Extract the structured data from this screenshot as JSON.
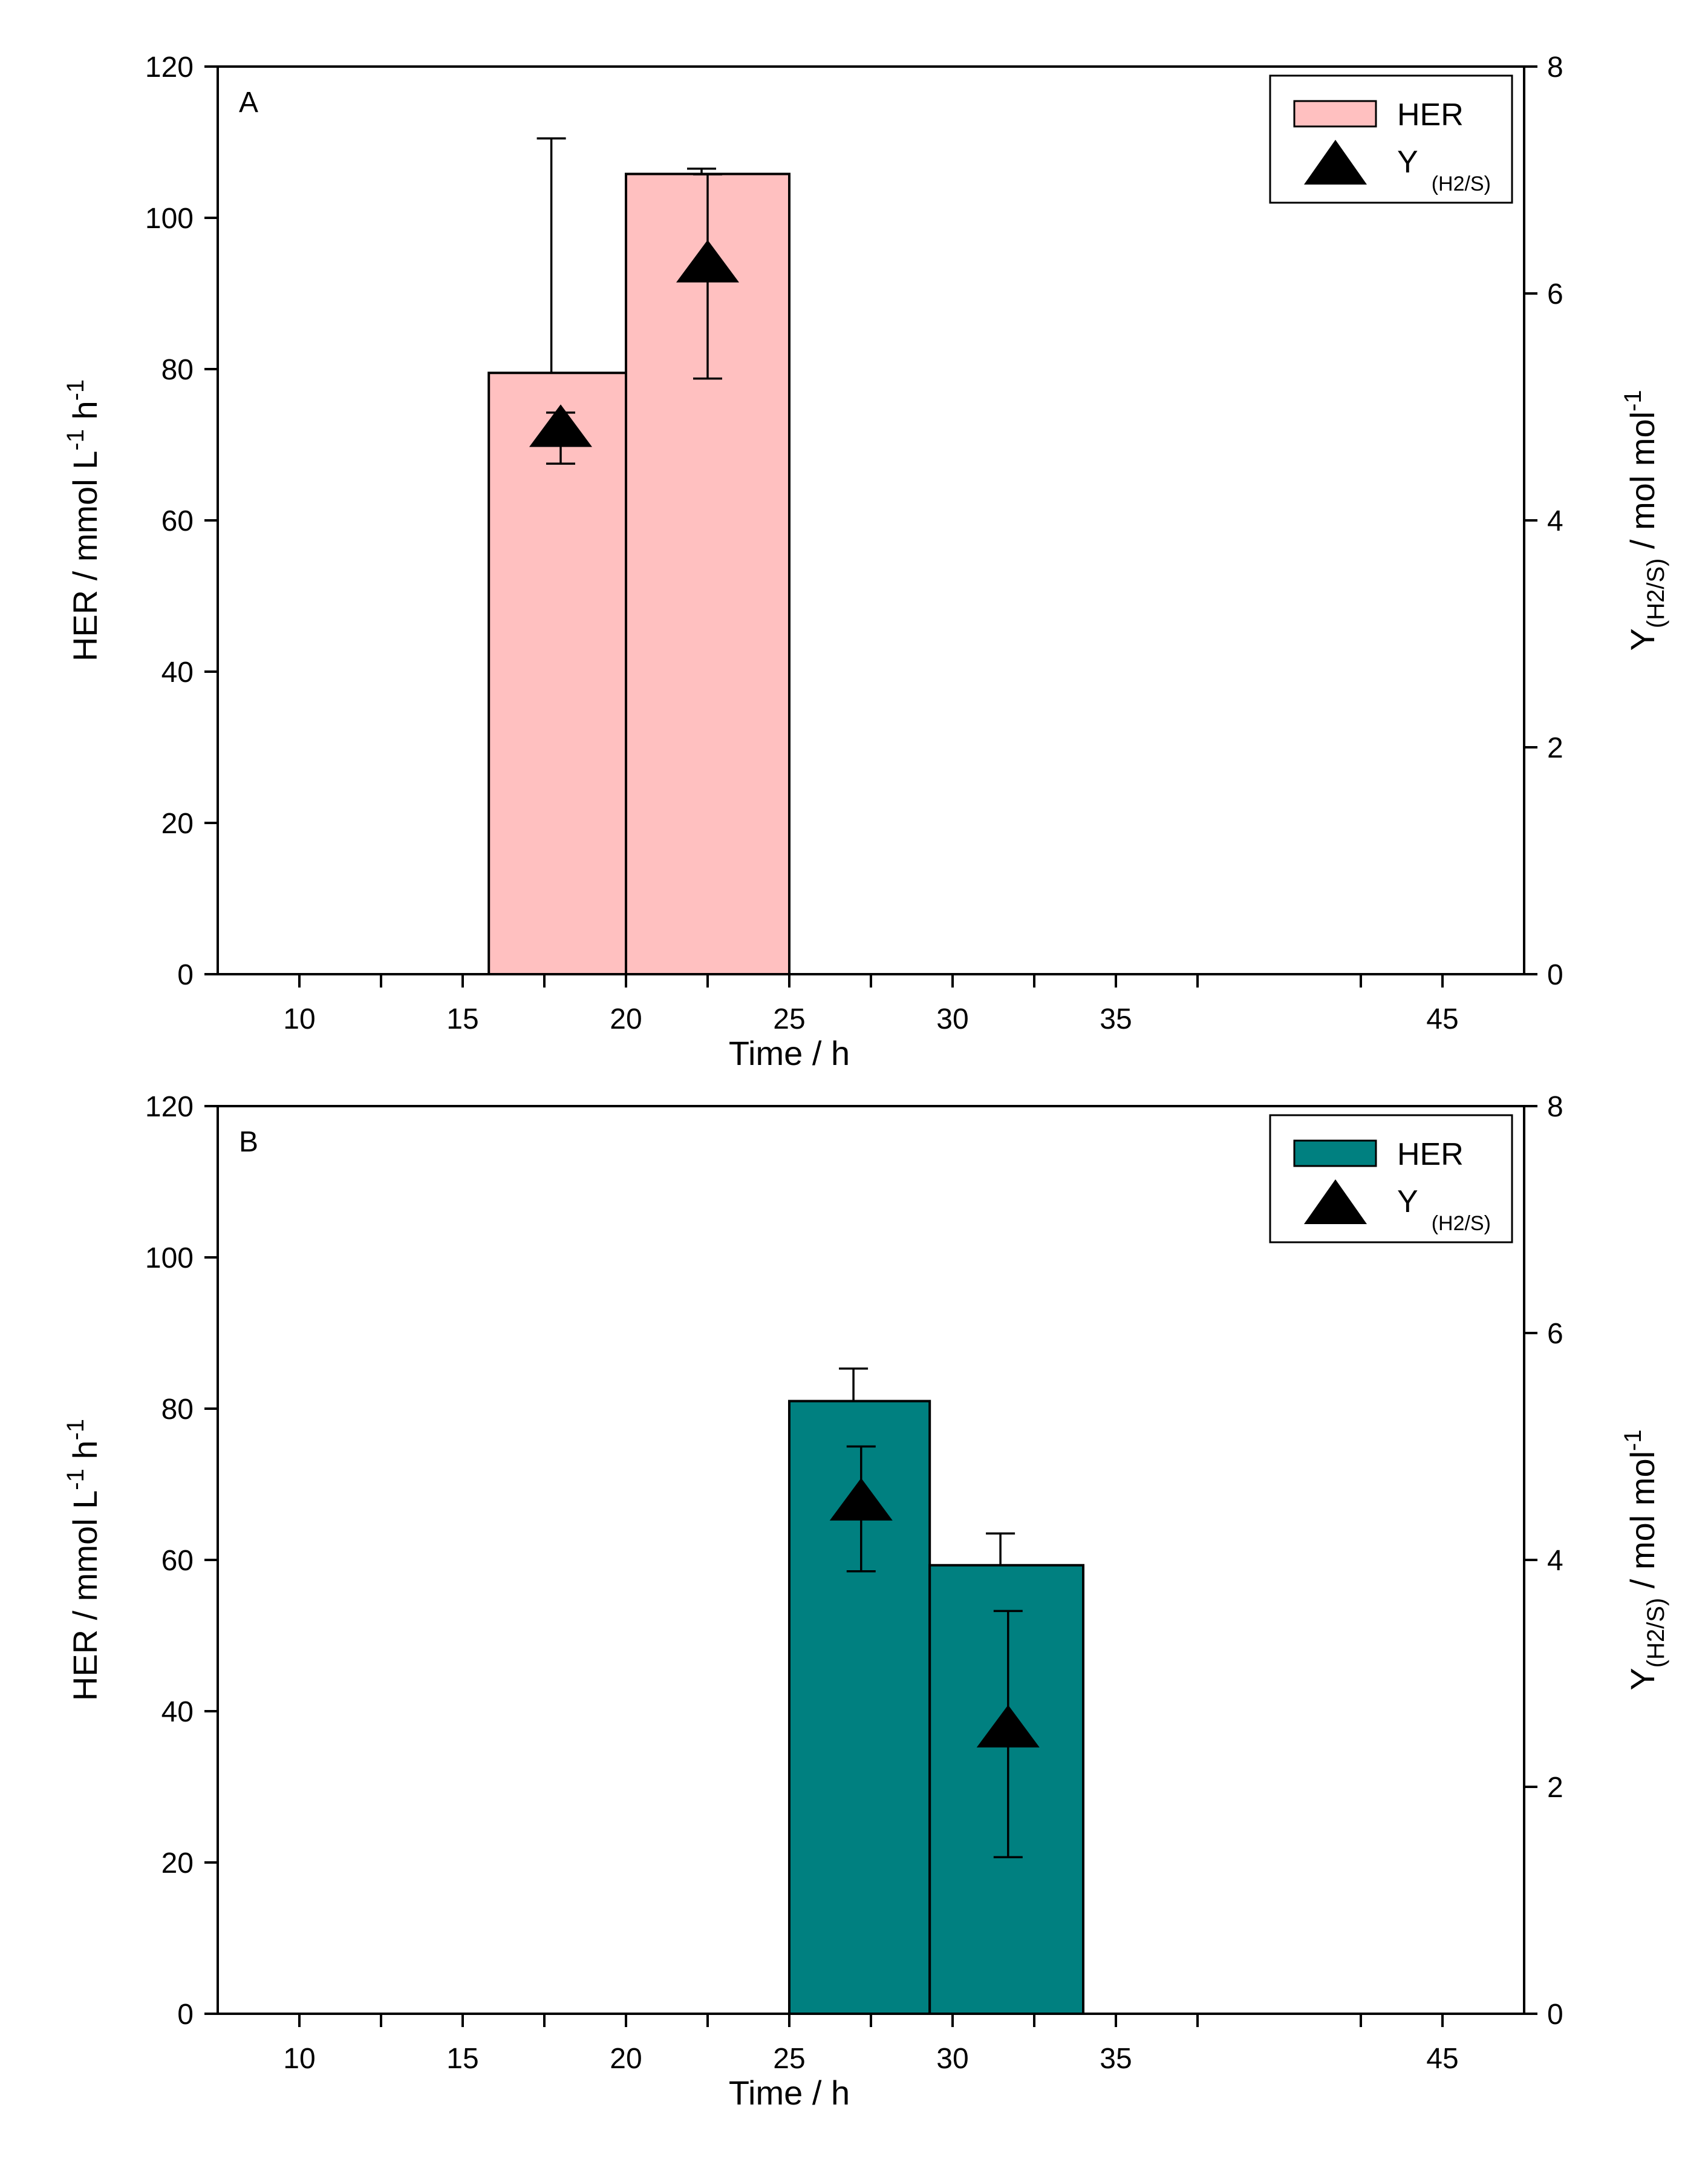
{
  "chart_data": [
    {
      "type": "bar",
      "panel_label": "A",
      "bar_color": "#ffc0c0",
      "legend": {
        "bar_label": "HER",
        "marker_label_main": "Y",
        "marker_label_sub": "(H2/S)",
        "placement": "top-right"
      },
      "xlabel": "Time / h",
      "ylabel_left": {
        "main": "HER / mmol L",
        "sup1": "-1",
        "mid": " h",
        "sup2": "-1"
      },
      "ylabel_right": {
        "main": "Y",
        "sub": "(H2/S)",
        "rest": " / mol mol",
        "sup": "-1"
      },
      "xlim": [
        7.5,
        47.5
      ],
      "ylim_left": [
        0,
        120
      ],
      "ylim_right": [
        0,
        8
      ],
      "x_ticks": [
        "10",
        "15",
        "20",
        "25",
        "30",
        "35",
        "45"
      ],
      "x_tick_values": [
        10,
        15,
        20,
        25,
        30,
        35,
        45
      ],
      "y_left_ticks": [
        "0",
        "20",
        "40",
        "60",
        "80",
        "100",
        "120"
      ],
      "y_right_ticks": [
        "0",
        "2",
        "4",
        "6",
        "8"
      ],
      "bars": [
        {
          "x_start": 15.8,
          "x_end": 20.0,
          "her": 79.5,
          "err_up": 110.5,
          "err_down": 79.5
        },
        {
          "x_start": 20.0,
          "x_end": 25.0,
          "her": 105.8,
          "err_up": 106.5,
          "err_down": 105.8
        }
      ],
      "yield_points": [
        {
          "x": 18.0,
          "y": 4.8,
          "err_up": 4.95,
          "err_down": 4.5
        },
        {
          "x": 22.5,
          "y": 6.25,
          "err_up": 7.05,
          "err_down": 5.25
        }
      ]
    },
    {
      "type": "bar",
      "panel_label": "B",
      "bar_color": "#008080",
      "legend": {
        "bar_label": "HER",
        "marker_label_main": "Y",
        "marker_label_sub": "(H2/S)",
        "placement": "top-right"
      },
      "xlabel": "Time / h",
      "ylabel_left": {
        "main": "HER / mmol L",
        "sup1": "-1",
        "mid": " h",
        "sup2": "-1"
      },
      "ylabel_right": {
        "main": "Y",
        "sub": "(H2/S)",
        "rest": " / mol mol",
        "sup": "-1"
      },
      "xlim": [
        7.5,
        47.5
      ],
      "ylim_left": [
        0,
        120
      ],
      "ylim_right": [
        0,
        8
      ],
      "x_ticks": [
        "10",
        "15",
        "20",
        "25",
        "30",
        "35",
        "45"
      ],
      "x_tick_values": [
        10,
        15,
        20,
        25,
        30,
        35,
        45
      ],
      "y_left_ticks": [
        "0",
        "20",
        "40",
        "60",
        "80",
        "100",
        "120"
      ],
      "y_right_ticks": [
        "0",
        "2",
        "4",
        "6",
        "8"
      ],
      "bars": [
        {
          "x_start": 25.0,
          "x_end": 29.3,
          "her": 81.0,
          "err_up": 85.3,
          "err_down": 81.0
        },
        {
          "x_start": 29.3,
          "x_end": 34.0,
          "her": 59.3,
          "err_up": 63.5,
          "err_down": 59.3
        }
      ],
      "yield_points": [
        {
          "x": 27.2,
          "y": 4.5,
          "err_up": 5.0,
          "err_down": 3.9
        },
        {
          "x": 31.7,
          "y": 2.5,
          "err_up": 3.55,
          "err_down": 1.38
        }
      ]
    }
  ]
}
